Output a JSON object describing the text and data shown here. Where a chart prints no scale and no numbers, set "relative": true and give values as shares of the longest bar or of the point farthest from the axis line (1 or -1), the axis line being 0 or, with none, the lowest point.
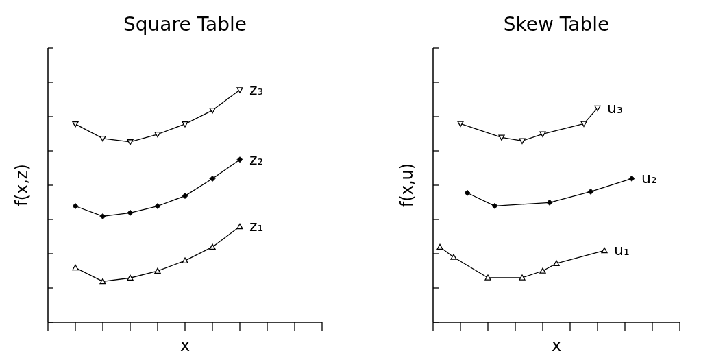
{
  "chart_data": [
    {
      "type": "line",
      "title": "Square Table",
      "xlabel": "x",
      "ylabel": "f(x,z)",
      "relative": true,
      "categories": [
        null,
        null,
        null,
        null,
        null,
        null,
        null,
        null,
        null,
        null,
        null
      ],
      "line_style": "solid",
      "legend": "right",
      "series": [
        {
          "name": "z₁",
          "color": "#000000",
          "marker": "triangle",
          "values": [
            null,
            0.235,
            0.176,
            0.191,
            0.221,
            0.265,
            0.324,
            0.412,
            null,
            null,
            null
          ]
        },
        {
          "name": "z₂",
          "color": "#000000",
          "marker": "diamond",
          "values": [
            null,
            0.5,
            0.456,
            0.471,
            0.5,
            0.544,
            0.618,
            0.7,
            null,
            null,
            null
          ]
        },
        {
          "name": "z₃",
          "color": "#000000",
          "marker": "triangle-down",
          "values": [
            null,
            0.853,
            0.791,
            0.776,
            0.809,
            0.853,
            0.912,
            1,
            null,
            null,
            null
          ]
        }
      ]
    },
    {
      "type": "line",
      "title": "Skew Table",
      "xlabel": "x",
      "ylabel": "f(x,u)",
      "relative": true,
      "categories": [
        null,
        null,
        null,
        null,
        null,
        null,
        null,
        null,
        null,
        null,
        null,
        null,
        null,
        null,
        null,
        null,
        null,
        null,
        null,
        null,
        null,
        null,
        null,
        null,
        null,
        null,
        null,
        null,
        null,
        null,
        null,
        null,
        null,
        null,
        null,
        null,
        null
      ],
      "line_style": "solid",
      "legend": "right",
      "series": [
        {
          "name": "u₁",
          "color": "#000000",
          "marker": "triangle",
          "values": [
            null,
            0.351,
            null,
            0.304,
            null,
            null,
            null,
            null,
            0.208,
            null,
            null,
            null,
            null,
            0.208,
            null,
            null,
            0.24,
            null,
            0.275,
            null,
            null,
            null,
            null,
            null,
            null,
            0.335,
            null,
            null,
            null,
            null,
            null,
            null,
            null,
            null,
            null,
            null,
            null
          ]
        },
        {
          "name": "u₂",
          "color": "#000000",
          "marker": "diamond",
          "values": [
            null,
            null,
            null,
            null,
            null,
            0.604,
            null,
            null,
            null,
            0.543,
            null,
            null,
            null,
            null,
            null,
            null,
            null,
            0.559,
            null,
            null,
            null,
            null,
            null,
            0.61,
            null,
            null,
            null,
            null,
            null,
            0.671,
            null,
            null,
            null,
            null,
            null,
            null,
            null
          ]
        },
        {
          "name": "u₃",
          "color": "#000000",
          "marker": "triangle-down",
          "values": [
            null,
            null,
            null,
            null,
            0.927,
            null,
            null,
            null,
            null,
            null,
            0.863,
            null,
            null,
            0.847,
            null,
            null,
            0.879,
            null,
            null,
            null,
            null,
            null,
            0.927,
            null,
            1,
            null,
            null,
            null,
            null,
            null,
            null,
            null,
            null,
            null,
            null,
            null,
            null
          ]
        }
      ]
    }
  ]
}
